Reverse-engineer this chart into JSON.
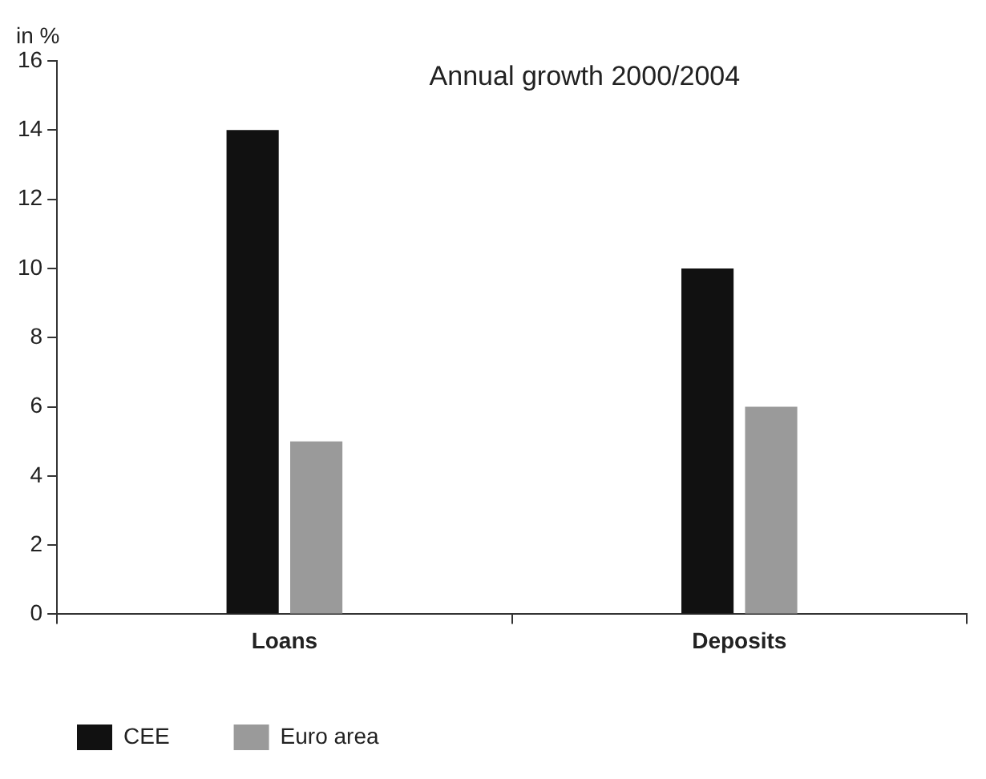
{
  "chart_data": {
    "type": "bar",
    "title": "Annual growth 2000/2004",
    "ylabel": "in %",
    "categories": [
      "Loans",
      "Deposits"
    ],
    "series": [
      {
        "name": "CEE",
        "color": "#111111",
        "values": [
          14,
          10
        ]
      },
      {
        "name": "Euro area",
        "color": "#9a9a9a",
        "values": [
          5,
          6
        ]
      }
    ],
    "ylim": [
      0,
      16
    ],
    "yticks": [
      0,
      2,
      4,
      6,
      8,
      10,
      12,
      14,
      16
    ],
    "grid": false,
    "legend": "bottom left"
  }
}
